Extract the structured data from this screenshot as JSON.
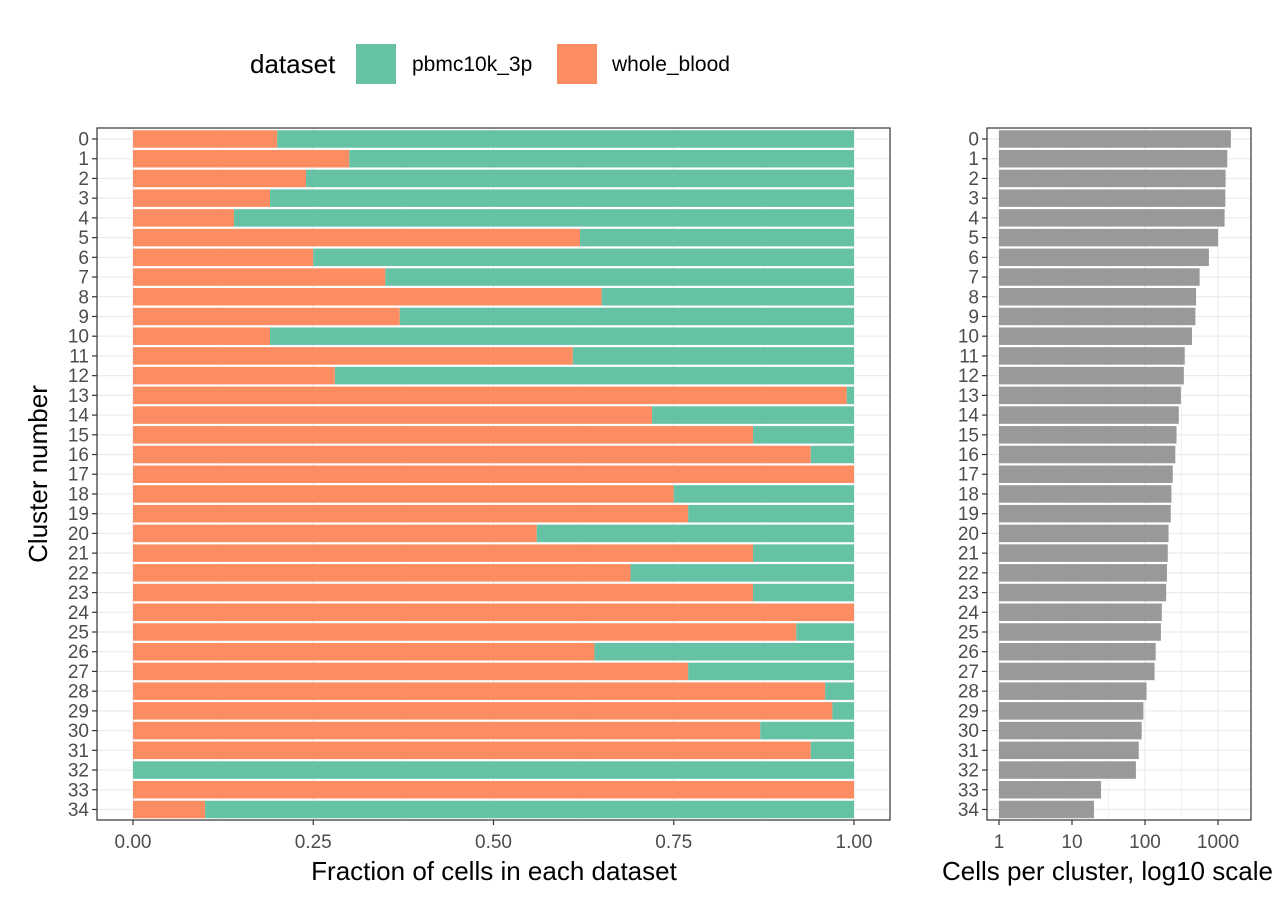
{
  "legend": {
    "title": "dataset",
    "items": [
      {
        "label": "pbmc10k_3p",
        "color": "#66C2A5"
      },
      {
        "label": "whole_blood",
        "color": "#FC8D62"
      }
    ]
  },
  "chart_data": [
    {
      "type": "bar",
      "orientation": "horizontal",
      "stacked": true,
      "xlabel": "Fraction of cells in each dataset",
      "ylabel": "Cluster number",
      "xlim": [
        0,
        1
      ],
      "x_ticks": [
        "0.00",
        "0.25",
        "0.50",
        "0.75",
        "1.00"
      ],
      "grid": true,
      "legend_position": "top",
      "categories": [
        "0",
        "1",
        "2",
        "3",
        "4",
        "5",
        "6",
        "7",
        "8",
        "9",
        "10",
        "11",
        "12",
        "13",
        "14",
        "15",
        "16",
        "17",
        "18",
        "19",
        "20",
        "21",
        "22",
        "23",
        "24",
        "25",
        "26",
        "27",
        "28",
        "29",
        "30",
        "31",
        "32",
        "33",
        "34"
      ],
      "series": [
        {
          "name": "whole_blood",
          "color": "#FC8D62",
          "values": [
            0.2,
            0.3,
            0.24,
            0.19,
            0.14,
            0.62,
            0.25,
            0.35,
            0.65,
            0.37,
            0.19,
            0.61,
            0.28,
            0.99,
            0.72,
            0.86,
            0.94,
            1.0,
            0.75,
            0.77,
            0.56,
            0.86,
            0.69,
            0.86,
            1.0,
            0.92,
            0.64,
            0.77,
            0.96,
            0.97,
            0.87,
            0.94,
            0.0,
            1.0,
            0.1
          ]
        },
        {
          "name": "pbmc10k_3p",
          "color": "#66C2A5",
          "values": [
            0.8,
            0.7,
            0.76,
            0.81,
            0.86,
            0.38,
            0.75,
            0.65,
            0.35,
            0.63,
            0.81,
            0.39,
            0.72,
            0.01,
            0.28,
            0.14,
            0.06,
            0.0,
            0.25,
            0.23,
            0.44,
            0.14,
            0.31,
            0.14,
            0.0,
            0.08,
            0.36,
            0.23,
            0.04,
            0.03,
            0.13,
            0.06,
            1.0,
            0.0,
            0.9
          ]
        }
      ]
    },
    {
      "type": "bar",
      "orientation": "horizontal",
      "xlabel": "Cells per cluster, log10 scale",
      "x_scale": "log10",
      "xlim": [
        1,
        2000
      ],
      "x_ticks": [
        "1",
        "10",
        "100",
        "1000"
      ],
      "grid": true,
      "bar_color": "#999999",
      "categories": [
        "0",
        "1",
        "2",
        "3",
        "4",
        "5",
        "6",
        "7",
        "8",
        "9",
        "10",
        "11",
        "12",
        "13",
        "14",
        "15",
        "16",
        "17",
        "18",
        "19",
        "20",
        "21",
        "22",
        "23",
        "24",
        "25",
        "26",
        "27",
        "28",
        "29",
        "30",
        "31",
        "32",
        "33",
        "34"
      ],
      "values": [
        1500,
        1340,
        1270,
        1260,
        1230,
        1000,
        750,
        560,
        500,
        490,
        440,
        350,
        340,
        310,
        290,
        270,
        260,
        240,
        230,
        225,
        210,
        205,
        200,
        195,
        170,
        165,
        140,
        135,
        105,
        95,
        90,
        82,
        75,
        25,
        20
      ]
    }
  ]
}
